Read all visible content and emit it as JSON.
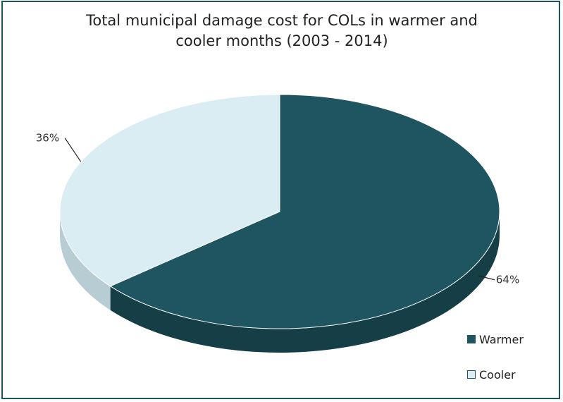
{
  "chart_data": {
    "type": "pie",
    "title": "Total municipal damage cost for COLs in warmer and cooler months (2003 - 2014)",
    "title_lines": [
      "Total municipal damage cost for COLs in warmer and",
      "cooler months (2003 - 2014)"
    ],
    "style": "3d",
    "slices": [
      {
        "label": "Warmer",
        "value": 64,
        "value_label": "64%",
        "color": "#1f5560",
        "side_color": "#153e46"
      },
      {
        "label": "Cooler",
        "value": 36,
        "value_label": "36%",
        "color": "#daedf2",
        "side_color": "#b8cdd3"
      }
    ],
    "legend": {
      "position": "bottom-right",
      "entries": [
        "Warmer",
        "Cooler"
      ]
    }
  },
  "colors": {
    "frame": "#1f5560",
    "text": "#222222"
  }
}
